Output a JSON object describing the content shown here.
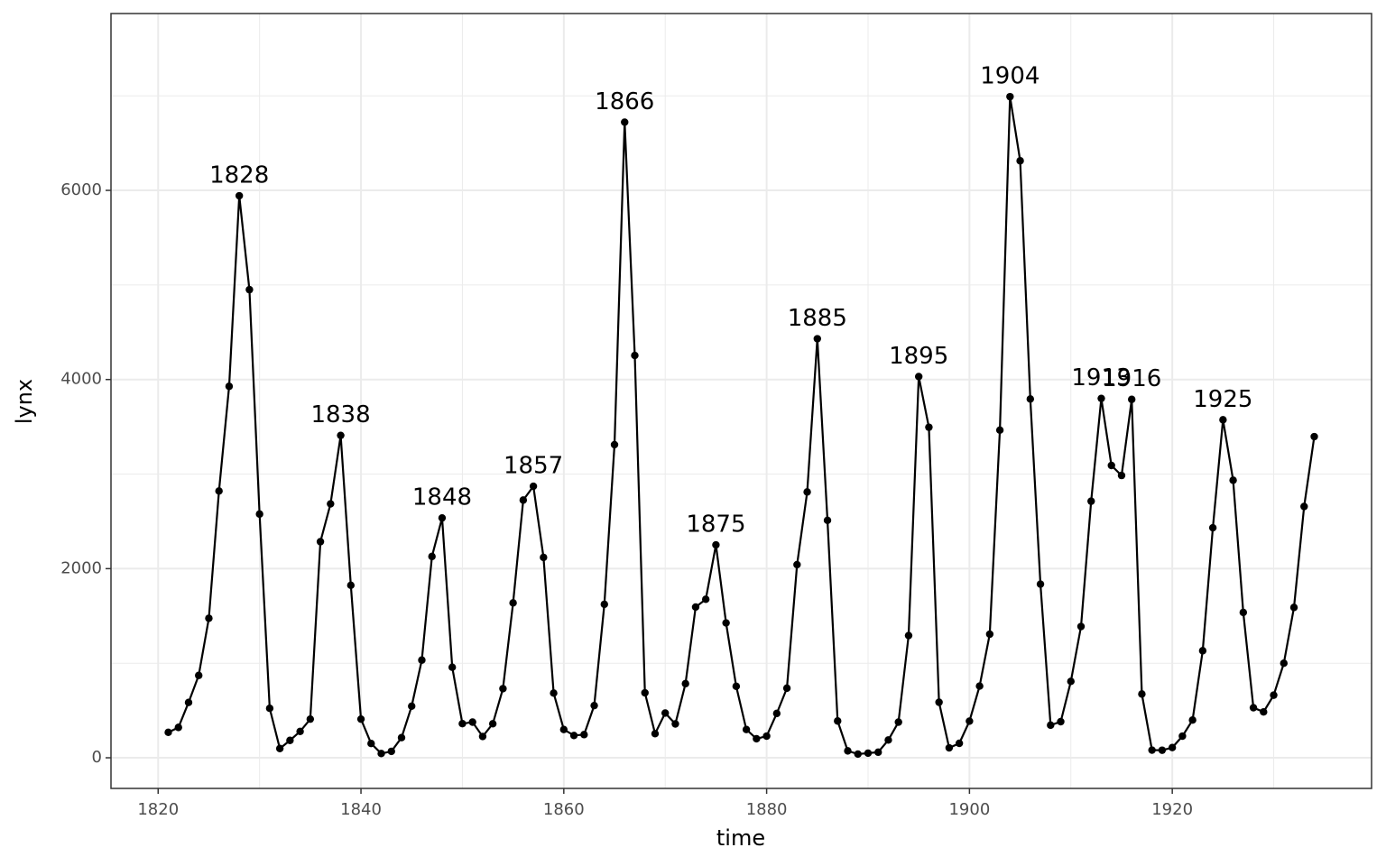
{
  "chart_data": {
    "type": "line",
    "x_label": "time",
    "y_label": "lynx",
    "x": [
      1821,
      1822,
      1823,
      1824,
      1825,
      1826,
      1827,
      1828,
      1829,
      1830,
      1831,
      1832,
      1833,
      1834,
      1835,
      1836,
      1837,
      1838,
      1839,
      1840,
      1841,
      1842,
      1843,
      1844,
      1845,
      1846,
      1847,
      1848,
      1849,
      1850,
      1851,
      1852,
      1853,
      1854,
      1855,
      1856,
      1857,
      1858,
      1859,
      1860,
      1861,
      1862,
      1863,
      1864,
      1865,
      1866,
      1867,
      1868,
      1869,
      1870,
      1871,
      1872,
      1873,
      1874,
      1875,
      1876,
      1877,
      1878,
      1879,
      1880,
      1881,
      1882,
      1883,
      1884,
      1885,
      1886,
      1887,
      1888,
      1889,
      1890,
      1891,
      1892,
      1893,
      1894,
      1895,
      1896,
      1897,
      1898,
      1899,
      1900,
      1901,
      1902,
      1903,
      1904,
      1905,
      1906,
      1907,
      1908,
      1909,
      1910,
      1911,
      1912,
      1913,
      1914,
      1915,
      1916,
      1917,
      1918,
      1919,
      1920,
      1921,
      1922,
      1923,
      1924,
      1925,
      1926,
      1927,
      1928,
      1929,
      1930,
      1931,
      1932,
      1933,
      1934
    ],
    "series": [
      {
        "color": "#000000",
        "values": [
          269,
          321,
          585,
          871,
          1475,
          2821,
          3928,
          5943,
          4950,
          2577,
          523,
          98,
          184,
          279,
          409,
          2285,
          2685,
          3409,
          1824,
          409,
          151,
          45,
          68,
          213,
          546,
          1033,
          2129,
          2536,
          957,
          361,
          377,
          225,
          360,
          731,
          1638,
          2725,
          2871,
          2119,
          684,
          299,
          236,
          245,
          552,
          1623,
          3311,
          6721,
          4254,
          687,
          255,
          473,
          358,
          784,
          1594,
          1676,
          2251,
          1426,
          756,
          299,
          201,
          229,
          469,
          736,
          2042,
          2811,
          4431,
          2511,
          389,
          73,
          39,
          49,
          59,
          188,
          377,
          1292,
          4031,
          3495,
          587,
          105,
          153,
          387,
          758,
          1307,
          3465,
          6991,
          6313,
          3794,
          1836,
          345,
          382,
          808,
          1388,
          2713,
          3800,
          3091,
          2985,
          3790,
          674,
          81,
          80,
          108,
          229,
          399,
          1132,
          2432,
          3574,
          2935,
          1537,
          529,
          485,
          662,
          1000,
          1590,
          2657,
          3396
        ]
      }
    ],
    "annotations": [
      1828,
      1838,
      1848,
      1857,
      1866,
      1875,
      1885,
      1895,
      1904,
      1913,
      1916,
      1925
    ],
    "xlim": [
      1815.35,
      1939.65
    ],
    "ylim": [
      -324,
      7870
    ],
    "xticks": [
      1820,
      1840,
      1860,
      1880,
      1900,
      1920
    ],
    "yticks": [
      0,
      2000,
      4000,
      6000
    ],
    "xminor": [
      1830,
      1850,
      1870,
      1890,
      1910,
      1930
    ],
    "yminor": [
      1000,
      3000,
      5000,
      7000
    ],
    "grid": true
  }
}
